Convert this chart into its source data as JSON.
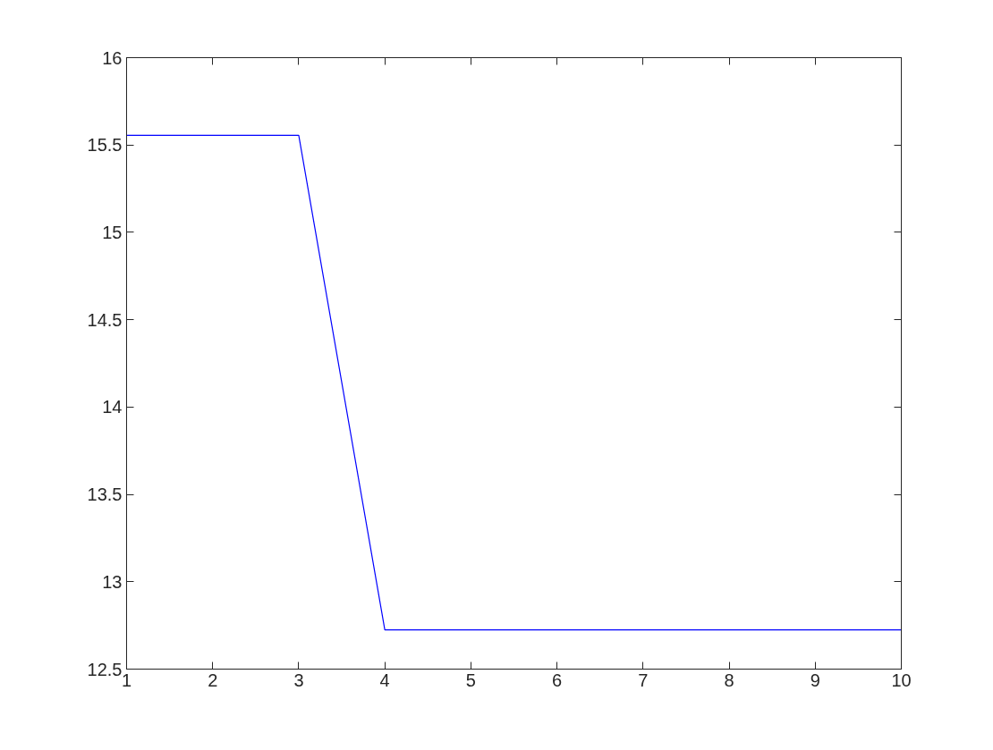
{
  "chart_data": {
    "type": "line",
    "x": [
      1,
      2,
      3,
      4,
      5,
      6,
      7,
      8,
      9,
      10
    ],
    "series": [
      {
        "color": "#0000ff",
        "values": [
          15.555,
          15.555,
          15.555,
          12.725,
          12.725,
          12.725,
          12.725,
          12.725,
          12.725,
          12.725
        ]
      }
    ],
    "xlim": [
      1,
      10
    ],
    "ylim": [
      12.5,
      16
    ],
    "xticks": [
      1,
      2,
      3,
      4,
      5,
      6,
      7,
      8,
      9,
      10
    ],
    "yticks": [
      12.5,
      13,
      13.5,
      14,
      14.5,
      15,
      15.5,
      16
    ],
    "grid": false,
    "marker": "none",
    "line_style": "solid"
  }
}
